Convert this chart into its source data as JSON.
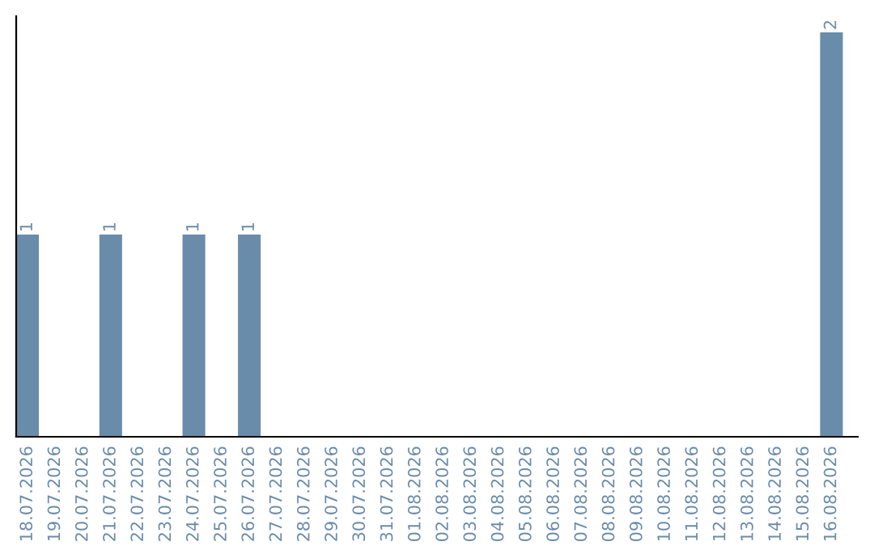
{
  "chart_data": {
    "type": "bar",
    "categories": [
      "18.07.2026",
      "19.07.2026",
      "20.07.2026",
      "21.07.2026",
      "22.07.2026",
      "23.07.2026",
      "24.07.2026",
      "25.07.2026",
      "26.07.2026",
      "27.07.2026",
      "28.07.2026",
      "29.07.2026",
      "30.07.2026",
      "31.07.2026",
      "01.08.2026",
      "02.08.2026",
      "03.08.2026",
      "04.08.2026",
      "05.08.2026",
      "06.08.2026",
      "07.08.2026",
      "08.08.2026",
      "09.08.2026",
      "10.08.2026",
      "11.08.2026",
      "12.08.2026",
      "13.08.2026",
      "14.08.2026",
      "15.08.2026",
      "16.08.2026"
    ],
    "values": [
      1,
      0,
      0,
      1,
      0,
      0,
      1,
      0,
      1,
      0,
      0,
      0,
      0,
      0,
      0,
      0,
      0,
      0,
      0,
      0,
      0,
      0,
      0,
      0,
      0,
      0,
      0,
      0,
      0,
      2
    ],
    "value_labels": [
      "1",
      null,
      null,
      "1",
      null,
      null,
      "1",
      null,
      "1",
      null,
      null,
      null,
      null,
      null,
      null,
      null,
      null,
      null,
      null,
      null,
      null,
      null,
      null,
      null,
      null,
      null,
      null,
      null,
      null,
      "2"
    ],
    "color": "#6a8cab",
    "grid": false,
    "legend": false
  }
}
